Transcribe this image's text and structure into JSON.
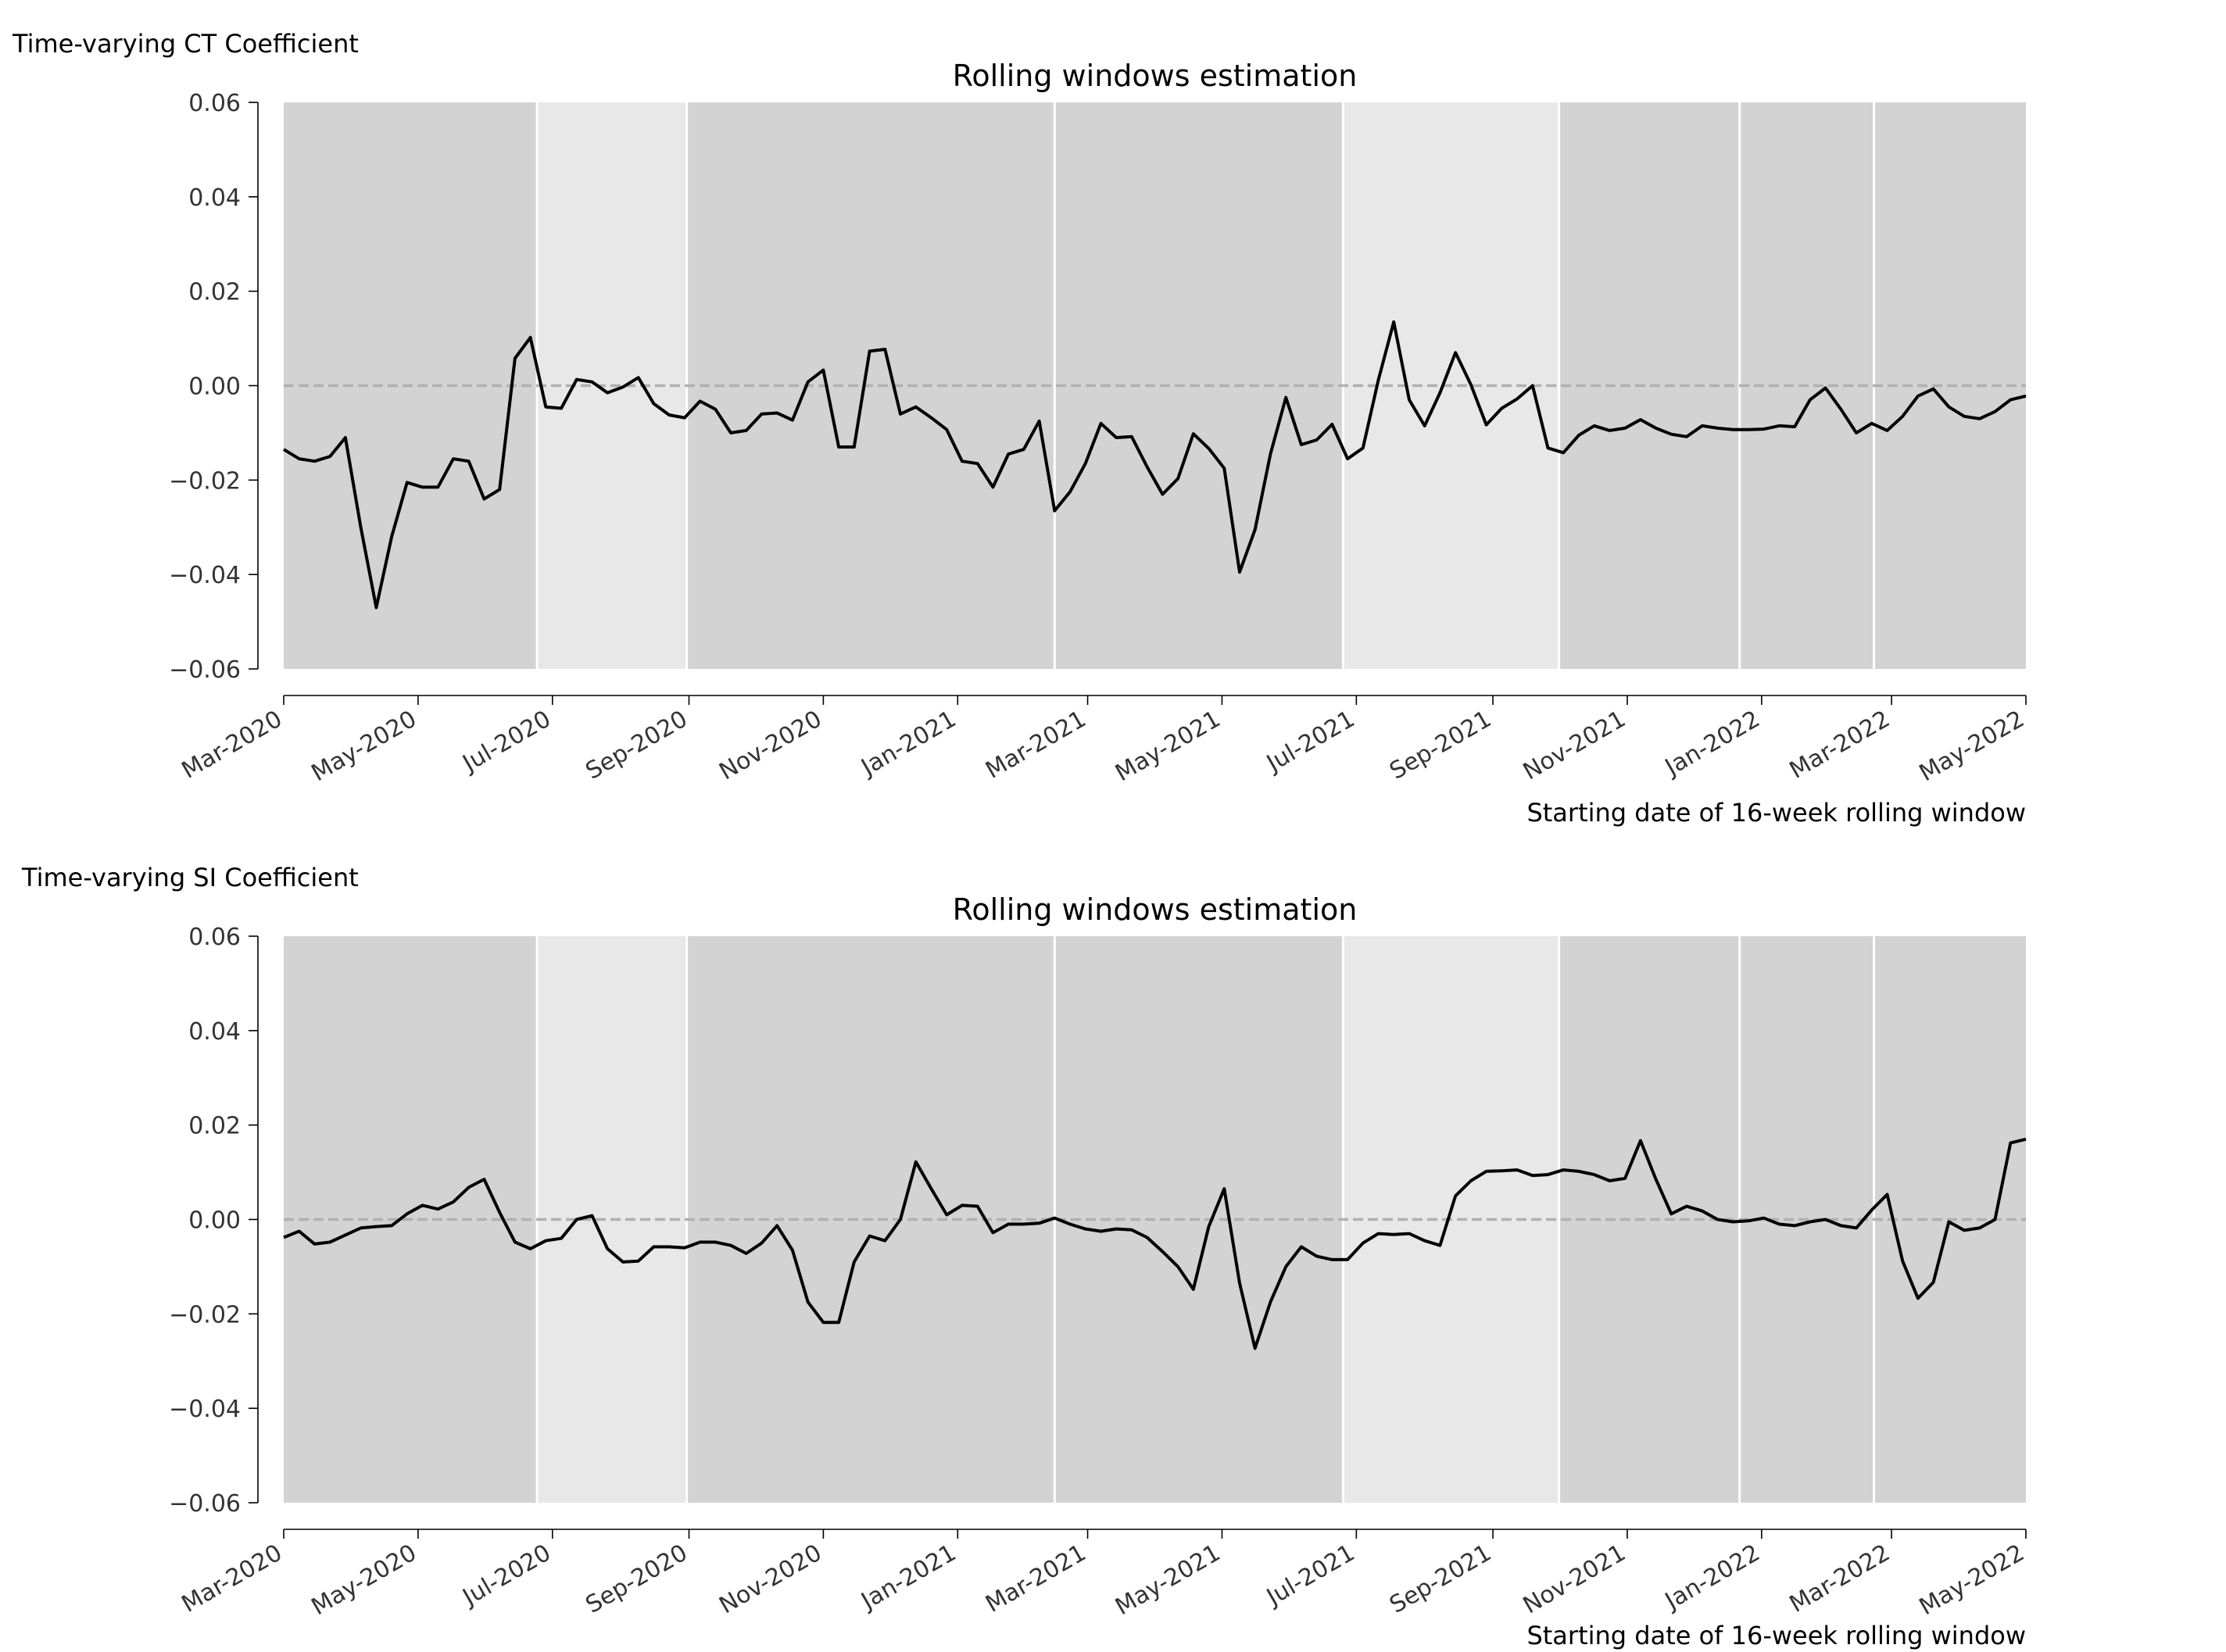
{
  "chart_data": [
    {
      "type": "line",
      "ylabel": "Time-varying CT Coefficient",
      "title": "Rolling windows estimation",
      "xlabel": "Starting date of 16-week rolling window",
      "ylim": [
        -0.06,
        0.06
      ],
      "yticks": [
        "0.06",
        "0.04",
        "0.02",
        "0.00",
        "−0.02",
        "−0.04",
        "−0.06"
      ],
      "xlim": [
        "2020-03-01",
        "2022-05-01"
      ],
      "xticks": [
        "Mar-2020",
        "May-2020",
        "Jul-2020",
        "Sep-2020",
        "Nov-2020",
        "Jan-2021",
        "Mar-2021",
        "May-2021",
        "Jul-2021",
        "Sep-2021",
        "Nov-2021",
        "Jan-2022",
        "Mar-2022",
        "May-2022"
      ],
      "xtick_dates": [
        "2020-03-01",
        "2020-05-01",
        "2020-07-01",
        "2020-09-01",
        "2020-11-01",
        "2021-01-01",
        "2021-03-01",
        "2021-05-01",
        "2021-07-01",
        "2021-09-01",
        "2021-11-01",
        "2022-01-01",
        "2022-03-01",
        "2022-05-01"
      ],
      "reference_line": {
        "y": 0.0,
        "style": "dashed",
        "color": "#b0b0b0"
      },
      "grid": false,
      "background_bands": [
        {
          "start": "2020-03-01",
          "end": "2020-06-24",
          "shade": "dark"
        },
        {
          "start": "2020-06-24",
          "end": "2020-08-31",
          "shade": "light"
        },
        {
          "start": "2020-08-31",
          "end": "2021-02-14",
          "shade": "dark"
        },
        {
          "start": "2021-02-14",
          "end": "2021-06-25",
          "shade": "dark"
        },
        {
          "start": "2021-06-25",
          "end": "2021-10-01",
          "shade": "light"
        },
        {
          "start": "2021-10-01",
          "end": "2021-12-22",
          "shade": "dark"
        },
        {
          "start": "2021-12-22",
          "end": "2022-02-21",
          "shade": "dark"
        },
        {
          "start": "2022-02-21",
          "end": "2022-05-01",
          "shade": "dark"
        }
      ],
      "series": [
        {
          "color": "#000000",
          "x": [
            "2020-03-01",
            "2020-03-08",
            "2020-03-15",
            "2020-03-22",
            "2020-03-29",
            "2020-04-05",
            "2020-04-12",
            "2020-04-19",
            "2020-04-26",
            "2020-05-03",
            "2020-05-10",
            "2020-05-17",
            "2020-05-24",
            "2020-05-31",
            "2020-06-07",
            "2020-06-14",
            "2020-06-21",
            "2020-06-28",
            "2020-07-05",
            "2020-07-12",
            "2020-07-19",
            "2020-07-26",
            "2020-08-02",
            "2020-08-09",
            "2020-08-16",
            "2020-08-23",
            "2020-08-30",
            "2020-09-06",
            "2020-09-13",
            "2020-09-20",
            "2020-09-27",
            "2020-10-04",
            "2020-10-11",
            "2020-10-18",
            "2020-10-25",
            "2020-11-01",
            "2020-11-08",
            "2020-11-15",
            "2020-11-22",
            "2020-11-29",
            "2020-12-06",
            "2020-12-13",
            "2020-12-20",
            "2020-12-27",
            "2021-01-03",
            "2021-01-10",
            "2021-01-17",
            "2021-01-24",
            "2021-01-31",
            "2021-02-07",
            "2021-02-14",
            "2021-02-21",
            "2021-02-28",
            "2021-03-07",
            "2021-03-14",
            "2021-03-21",
            "2021-03-28",
            "2021-04-04",
            "2021-04-11",
            "2021-04-18",
            "2021-04-25",
            "2021-05-02",
            "2021-05-09",
            "2021-05-16",
            "2021-05-23",
            "2021-05-30",
            "2021-06-06",
            "2021-06-13",
            "2021-06-20",
            "2021-06-27",
            "2021-07-04",
            "2021-07-11",
            "2021-07-18",
            "2021-07-25",
            "2021-08-01",
            "2021-08-08",
            "2021-08-15",
            "2021-08-22",
            "2021-08-29",
            "2021-09-05",
            "2021-09-12",
            "2021-09-19",
            "2021-09-26",
            "2021-10-03",
            "2021-10-10",
            "2021-10-17",
            "2021-10-24",
            "2021-10-31",
            "2021-11-07",
            "2021-11-14",
            "2021-11-21",
            "2021-11-28",
            "2021-12-05",
            "2021-12-12",
            "2021-12-19",
            "2021-12-26",
            "2022-01-02",
            "2022-01-09",
            "2022-01-16",
            "2022-01-23",
            "2022-01-30",
            "2022-02-06",
            "2022-02-13",
            "2022-02-20",
            "2022-02-27",
            "2022-03-06",
            "2022-03-13",
            "2022-03-20",
            "2022-03-27",
            "2022-04-03",
            "2022-04-10",
            "2022-04-17",
            "2022-04-24",
            "2022-05-01"
          ],
          "y": [
            -0.0135,
            -0.0155,
            -0.016,
            -0.015,
            -0.011,
            -0.03,
            -0.047,
            -0.032,
            -0.0205,
            -0.0215,
            -0.0215,
            -0.0155,
            -0.016,
            -0.024,
            -0.022,
            0.0058,
            0.0102,
            -0.0045,
            -0.0048,
            0.0013,
            0.0008,
            -0.0015,
            -0.0003,
            0.0017,
            -0.0038,
            -0.0062,
            -0.0068,
            -0.0033,
            -0.005,
            -0.01,
            -0.0095,
            -0.006,
            -0.0058,
            -0.0073,
            0.0008,
            0.0033,
            -0.013,
            -0.013,
            0.0073,
            0.0077,
            -0.006,
            -0.0045,
            -0.0068,
            -0.0093,
            -0.016,
            -0.0165,
            -0.0215,
            -0.0145,
            -0.0135,
            -0.0075,
            -0.0265,
            -0.0225,
            -0.0165,
            -0.008,
            -0.011,
            -0.0108,
            -0.0172,
            -0.023,
            -0.0197,
            -0.0102,
            -0.0133,
            -0.0175,
            -0.0395,
            -0.0305,
            -0.0145,
            -0.0025,
            -0.0125,
            -0.0115,
            -0.0082,
            -0.0155,
            -0.0132,
            0.0012,
            0.0135,
            -0.003,
            -0.0085,
            -0.0015,
            0.007,
            0.0002,
            -0.0083,
            -0.0048,
            -0.0028,
            0.0,
            -0.0132,
            -0.0142,
            -0.0105,
            -0.0085,
            -0.0095,
            -0.009,
            -0.0072,
            -0.009,
            -0.0103,
            -0.0108,
            -0.0085,
            -0.009,
            -0.0093,
            -0.0093,
            -0.0092,
            -0.0085,
            -0.0087,
            -0.003,
            -0.0005,
            -0.005,
            -0.01,
            -0.008,
            -0.0095,
            -0.0065,
            -0.0022,
            -0.0007,
            -0.0045,
            -0.0065,
            -0.007,
            -0.0055,
            -0.003,
            -0.0022
          ]
        }
      ]
    },
    {
      "type": "line",
      "ylabel": "Time-varying SI Coefficient",
      "title": "Rolling windows estimation",
      "xlabel": "Starting date of 16-week rolling window",
      "ylim": [
        -0.06,
        0.06
      ],
      "yticks": [
        "0.06",
        "0.04",
        "0.02",
        "0.00",
        "−0.02",
        "−0.04",
        "−0.06"
      ],
      "xlim": [
        "2020-03-01",
        "2022-05-01"
      ],
      "xticks": [
        "Mar-2020",
        "May-2020",
        "Jul-2020",
        "Sep-2020",
        "Nov-2020",
        "Jan-2021",
        "Mar-2021",
        "May-2021",
        "Jul-2021",
        "Sep-2021",
        "Nov-2021",
        "Jan-2022",
        "Mar-2022",
        "May-2022"
      ],
      "xtick_dates": [
        "2020-03-01",
        "2020-05-01",
        "2020-07-01",
        "2020-09-01",
        "2020-11-01",
        "2021-01-01",
        "2021-03-01",
        "2021-05-01",
        "2021-07-01",
        "2021-09-01",
        "2021-11-01",
        "2022-01-01",
        "2022-03-01",
        "2022-05-01"
      ],
      "reference_line": {
        "y": 0.0,
        "style": "dashed",
        "color": "#b0b0b0"
      },
      "grid": false,
      "background_bands": [
        {
          "start": "2020-03-01",
          "end": "2020-06-24",
          "shade": "dark"
        },
        {
          "start": "2020-06-24",
          "end": "2020-08-31",
          "shade": "light"
        },
        {
          "start": "2020-08-31",
          "end": "2021-02-14",
          "shade": "dark"
        },
        {
          "start": "2021-02-14",
          "end": "2021-06-25",
          "shade": "dark"
        },
        {
          "start": "2021-06-25",
          "end": "2021-10-01",
          "shade": "light"
        },
        {
          "start": "2021-10-01",
          "end": "2021-12-22",
          "shade": "dark"
        },
        {
          "start": "2021-12-22",
          "end": "2022-02-21",
          "shade": "dark"
        },
        {
          "start": "2022-02-21",
          "end": "2022-05-01",
          "shade": "dark"
        }
      ],
      "series": [
        {
          "color": "#000000",
          "x": [
            "2020-03-01",
            "2020-03-08",
            "2020-03-15",
            "2020-03-22",
            "2020-03-29",
            "2020-04-05",
            "2020-04-12",
            "2020-04-19",
            "2020-04-26",
            "2020-05-03",
            "2020-05-10",
            "2020-05-17",
            "2020-05-24",
            "2020-05-31",
            "2020-06-07",
            "2020-06-14",
            "2020-06-21",
            "2020-06-28",
            "2020-07-05",
            "2020-07-12",
            "2020-07-19",
            "2020-07-26",
            "2020-08-02",
            "2020-08-09",
            "2020-08-16",
            "2020-08-23",
            "2020-08-30",
            "2020-09-06",
            "2020-09-13",
            "2020-09-20",
            "2020-09-27",
            "2020-10-04",
            "2020-10-11",
            "2020-10-18",
            "2020-10-25",
            "2020-11-01",
            "2020-11-08",
            "2020-11-15",
            "2020-11-22",
            "2020-11-29",
            "2020-12-06",
            "2020-12-13",
            "2020-12-20",
            "2020-12-27",
            "2021-01-03",
            "2021-01-10",
            "2021-01-17",
            "2021-01-24",
            "2021-01-31",
            "2021-02-07",
            "2021-02-14",
            "2021-02-21",
            "2021-02-28",
            "2021-03-07",
            "2021-03-14",
            "2021-03-21",
            "2021-03-28",
            "2021-04-04",
            "2021-04-11",
            "2021-04-18",
            "2021-04-25",
            "2021-05-02",
            "2021-05-09",
            "2021-05-16",
            "2021-05-23",
            "2021-05-30",
            "2021-06-06",
            "2021-06-13",
            "2021-06-20",
            "2021-06-27",
            "2021-07-04",
            "2021-07-11",
            "2021-07-18",
            "2021-07-25",
            "2021-08-01",
            "2021-08-08",
            "2021-08-15",
            "2021-08-22",
            "2021-08-29",
            "2021-09-05",
            "2021-09-12",
            "2021-09-19",
            "2021-09-26",
            "2021-10-03",
            "2021-10-10",
            "2021-10-17",
            "2021-10-24",
            "2021-10-31",
            "2021-11-07",
            "2021-11-14",
            "2021-11-21",
            "2021-11-28",
            "2021-12-05",
            "2021-12-12",
            "2021-12-19",
            "2021-12-26",
            "2022-01-02",
            "2022-01-09",
            "2022-01-16",
            "2022-01-23",
            "2022-01-30",
            "2022-02-06",
            "2022-02-13",
            "2022-02-20",
            "2022-02-27",
            "2022-03-06",
            "2022-03-13",
            "2022-03-20",
            "2022-03-27",
            "2022-04-03",
            "2022-04-10",
            "2022-04-17",
            "2022-04-24",
            "2022-05-01"
          ],
          "y": [
            -0.0038,
            -0.0025,
            -0.0052,
            -0.0048,
            -0.0033,
            -0.0018,
            -0.0015,
            -0.0013,
            0.0012,
            0.003,
            0.0022,
            0.0037,
            0.0068,
            0.0085,
            0.0015,
            -0.0048,
            -0.0062,
            -0.0045,
            -0.004,
            0.0,
            0.0008,
            -0.0062,
            -0.009,
            -0.0088,
            -0.0058,
            -0.0058,
            -0.006,
            -0.0048,
            -0.0048,
            -0.0055,
            -0.0072,
            -0.005,
            -0.0013,
            -0.0065,
            -0.0175,
            -0.0218,
            -0.0218,
            -0.009,
            -0.0035,
            -0.0045,
            0.0,
            0.0122,
            0.0065,
            0.001,
            0.003,
            0.0028,
            -0.0028,
            -0.001,
            -0.001,
            -0.0008,
            0.0003,
            -0.001,
            -0.002,
            -0.0025,
            -0.002,
            -0.0022,
            -0.0038,
            -0.0068,
            -0.01,
            -0.0148,
            -0.0015,
            0.0065,
            -0.0135,
            -0.0273,
            -0.0175,
            -0.01,
            -0.0058,
            -0.0078,
            -0.0085,
            -0.0085,
            -0.005,
            -0.003,
            -0.0032,
            -0.003,
            -0.0045,
            -0.0055,
            0.005,
            0.0082,
            0.0102,
            0.0103,
            0.0105,
            0.0093,
            0.0095,
            0.0105,
            0.0102,
            0.0095,
            0.0082,
            0.0087,
            0.0167,
            0.0085,
            0.0012,
            0.0028,
            0.0018,
            0.0,
            -0.0005,
            -0.0003,
            0.0003,
            -0.001,
            -0.0013,
            -0.0005,
            0.0,
            -0.0013,
            -0.0018,
            0.002,
            0.0053,
            -0.0088,
            -0.0167,
            -0.0133,
            -0.0005,
            -0.0023,
            -0.0018,
            0.0,
            0.0162,
            0.017
          ]
        }
      ]
    }
  ]
}
